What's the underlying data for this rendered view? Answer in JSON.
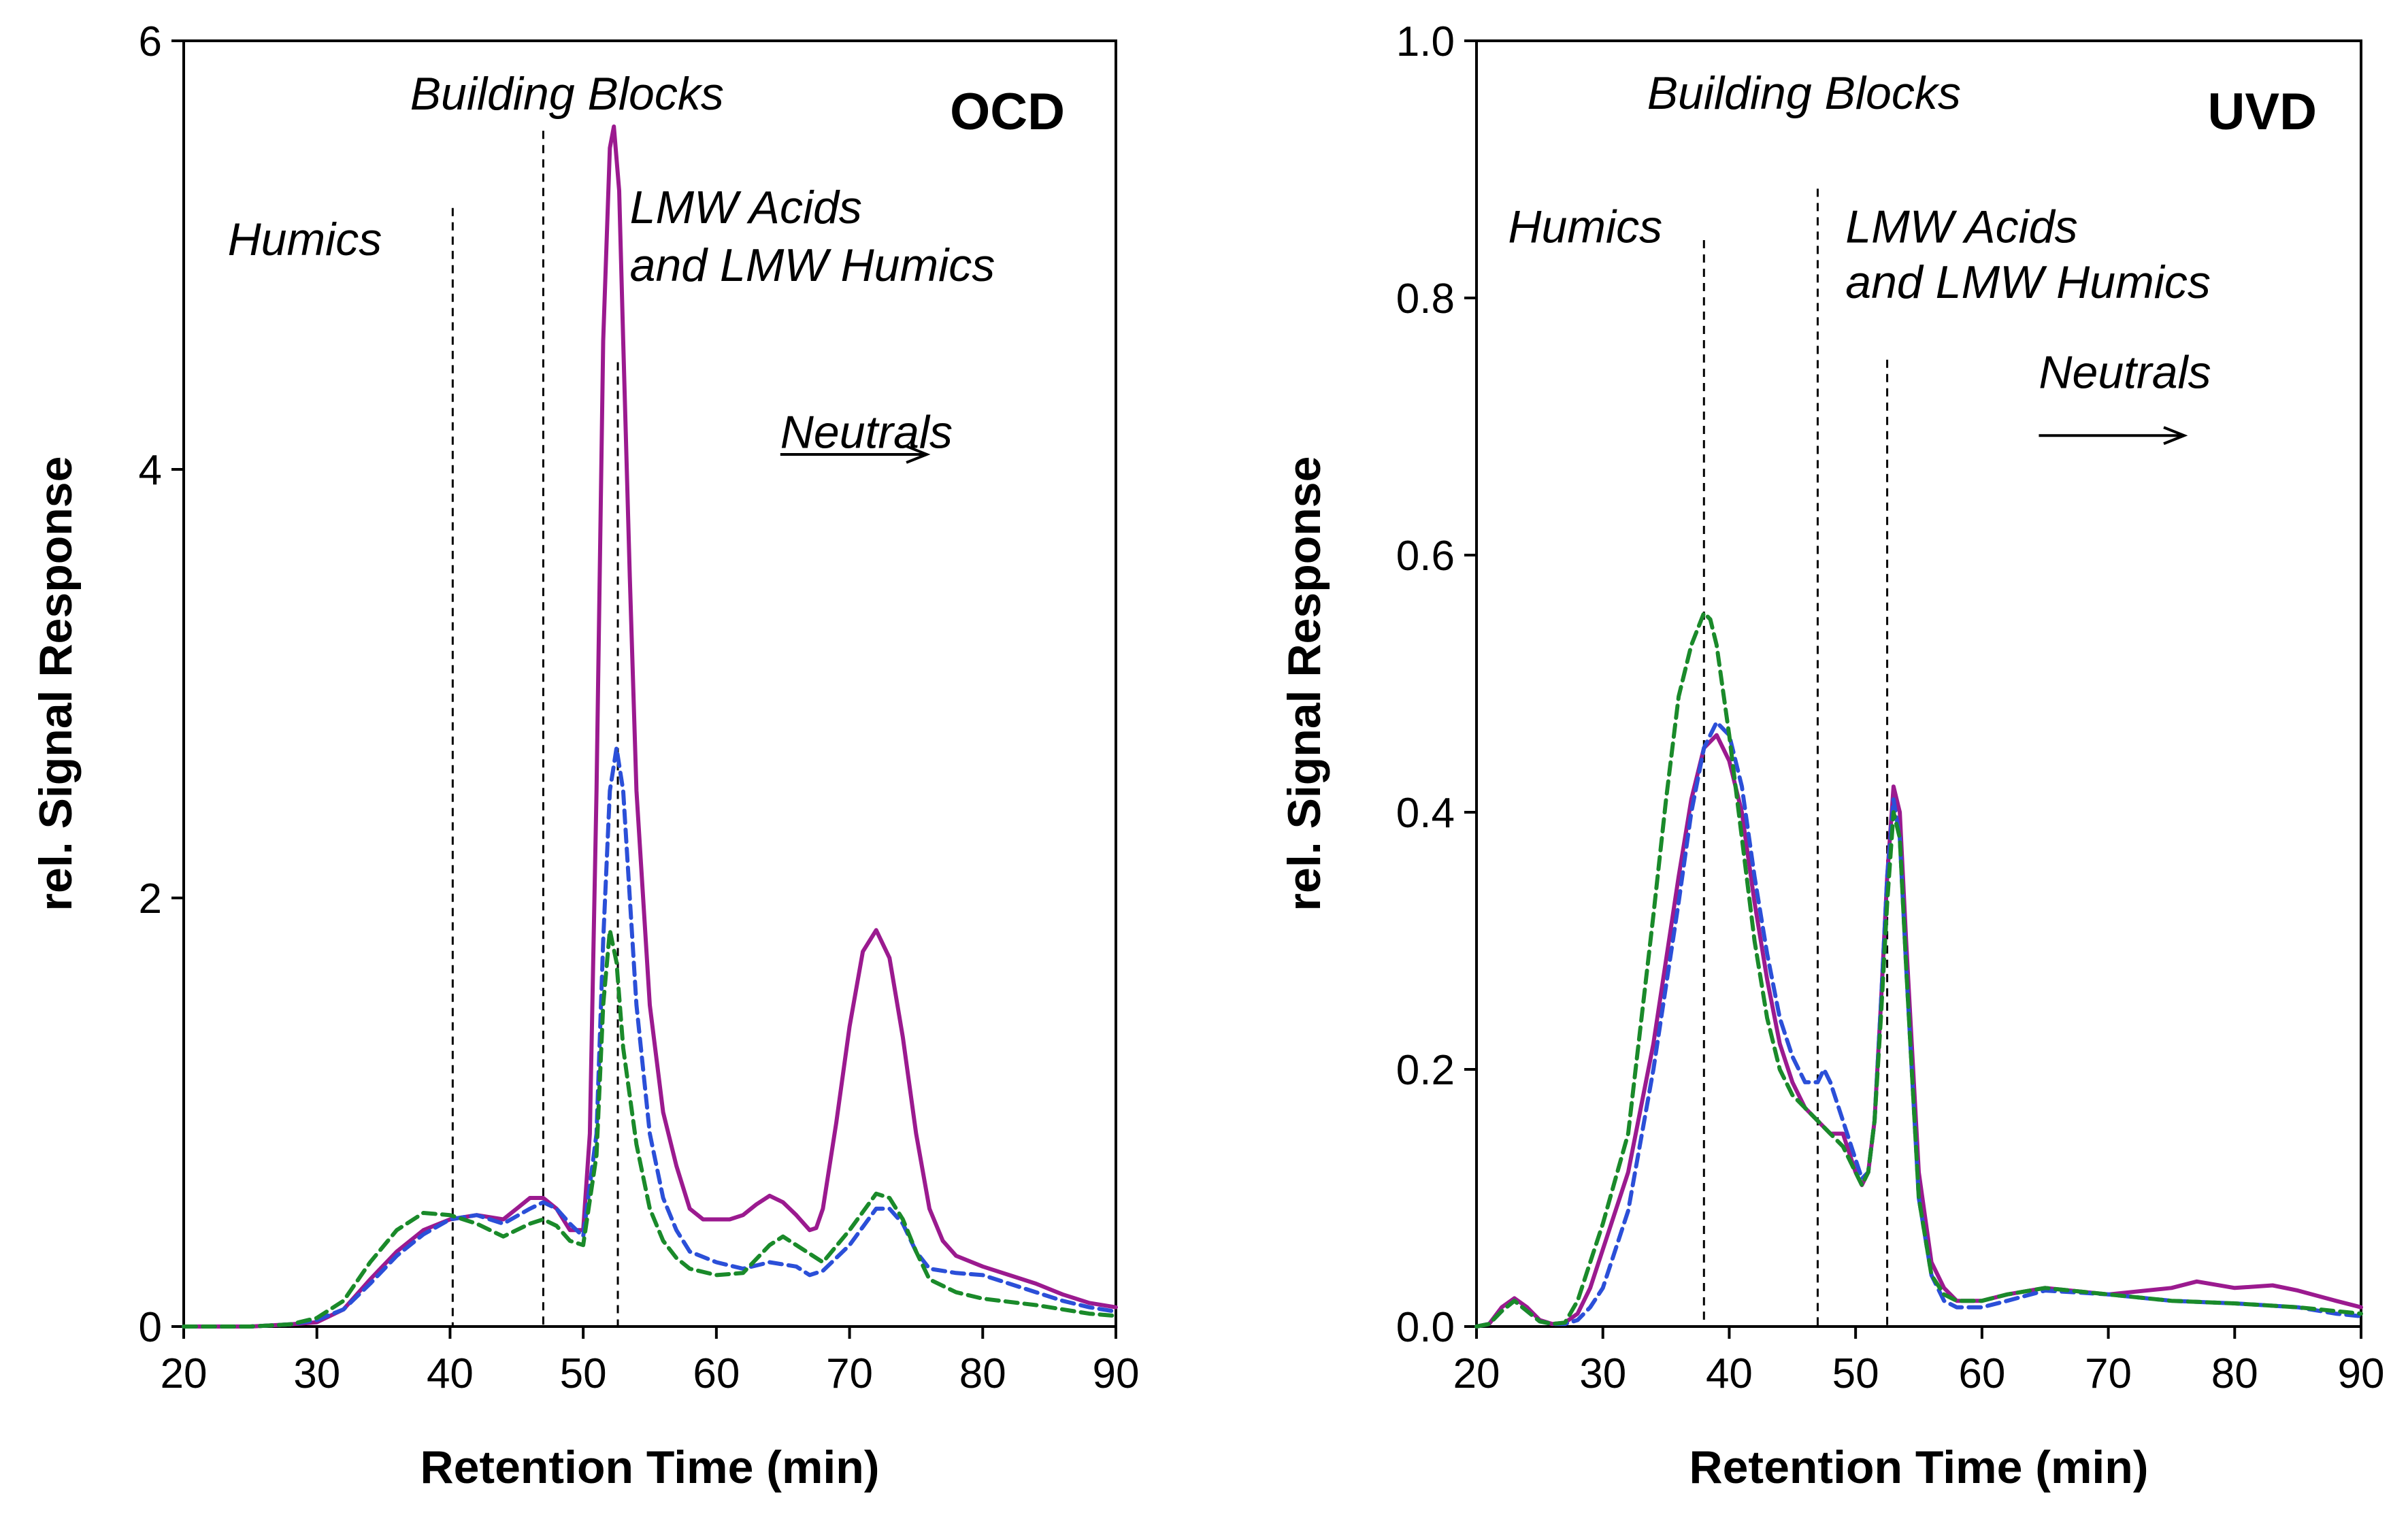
{
  "chart_data": [
    {
      "type": "line",
      "title": "OCD",
      "xlabel": "Retention Time (min)",
      "ylabel": "rel. Signal Response",
      "xlim": [
        20,
        90
      ],
      "ylim": [
        0,
        6
      ],
      "xticks": [
        20,
        30,
        40,
        50,
        60,
        70,
        80,
        90
      ],
      "xtick_labels": [
        "20",
        "30",
        "40",
        "50",
        "60",
        "70",
        "80",
        "90"
      ],
      "yticks": [
        0,
        2,
        4,
        6
      ],
      "ytick_labels": [
        "0",
        "2",
        "4",
        "6"
      ],
      "vlines": [
        40.2,
        47,
        52.6
      ],
      "regions": [
        {
          "lines": [
            "Humics"
          ],
          "x": 23.3,
          "y": 5.0
        },
        {
          "lines": [
            "Building Blocks"
          ],
          "x": 37,
          "y": 5.68
        },
        {
          "lines": [
            "LMW Acids",
            "and LMW Humics"
          ],
          "x": 53.5,
          "y": 5.15,
          "line_gap": 0.27
        },
        {
          "lines": [
            "Neutrals"
          ],
          "x": 64.8,
          "y": 4.1
        }
      ],
      "arrow": {
        "x1": 64.8,
        "x2": 75.8,
        "y": 4.07
      },
      "series": [
        {
          "name": "magenta",
          "color": "#9b1a8f",
          "dash": "solid",
          "x": [
            20,
            25,
            28,
            30,
            32,
            34,
            36,
            38,
            40,
            42,
            44,
            45,
            46,
            47,
            48,
            49,
            50,
            50.5,
            51,
            51.5,
            52,
            52.3,
            52.7,
            53,
            53.5,
            54,
            55,
            56,
            57,
            58,
            59,
            60,
            61,
            62,
            63,
            64,
            65,
            66,
            67,
            67.5,
            68,
            69,
            70,
            71,
            72,
            73,
            74,
            75,
            76,
            77,
            78,
            80,
            82,
            84,
            86,
            88,
            90
          ],
          "y": [
            0,
            0,
            0.01,
            0.02,
            0.08,
            0.22,
            0.35,
            0.45,
            0.5,
            0.52,
            0.5,
            0.55,
            0.6,
            0.6,
            0.55,
            0.45,
            0.45,
            0.9,
            2.5,
            4.6,
            5.5,
            5.6,
            5.3,
            4.6,
            3.5,
            2.5,
            1.5,
            1.0,
            0.75,
            0.55,
            0.5,
            0.5,
            0.5,
            0.52,
            0.57,
            0.61,
            0.58,
            0.52,
            0.45,
            0.46,
            0.55,
            0.95,
            1.4,
            1.75,
            1.85,
            1.72,
            1.35,
            0.9,
            0.55,
            0.4,
            0.33,
            0.28,
            0.24,
            0.2,
            0.15,
            0.11,
            0.09
          ]
        },
        {
          "name": "blue",
          "color": "#2b4fd8",
          "dash": "dashed",
          "x": [
            20,
            25,
            28,
            30,
            32,
            34,
            36,
            38,
            40,
            42,
            44,
            46,
            47,
            48,
            49,
            50,
            51,
            51.5,
            52,
            52.5,
            53,
            53.5,
            54,
            55,
            56,
            57,
            58,
            60,
            62,
            64,
            66,
            67,
            68,
            70,
            72,
            73,
            74,
            75,
            76,
            78,
            80,
            82,
            84,
            86,
            88,
            90
          ],
          "y": [
            0,
            0,
            0.01,
            0.03,
            0.08,
            0.2,
            0.33,
            0.43,
            0.5,
            0.52,
            0.48,
            0.55,
            0.58,
            0.55,
            0.48,
            0.42,
            0.9,
            1.8,
            2.5,
            2.7,
            2.5,
            2.0,
            1.5,
            0.9,
            0.6,
            0.45,
            0.35,
            0.3,
            0.27,
            0.3,
            0.28,
            0.24,
            0.26,
            0.38,
            0.55,
            0.55,
            0.48,
            0.35,
            0.27,
            0.25,
            0.24,
            0.2,
            0.16,
            0.12,
            0.09,
            0.07
          ]
        },
        {
          "name": "green",
          "color": "#1a8a2a",
          "dash": "dashed",
          "x": [
            20,
            25,
            28,
            30,
            32,
            34,
            36,
            38,
            40,
            42,
            44,
            46,
            47,
            48,
            49,
            50,
            51,
            51.5,
            52,
            52.5,
            53,
            54,
            55,
            56,
            57,
            58,
            60,
            62,
            64,
            65,
            66,
            68,
            70,
            72,
            73,
            74,
            75,
            76,
            78,
            80,
            84,
            88,
            90
          ],
          "y": [
            0,
            0,
            0.01,
            0.04,
            0.12,
            0.3,
            0.45,
            0.53,
            0.52,
            0.48,
            0.42,
            0.48,
            0.5,
            0.47,
            0.4,
            0.38,
            0.8,
            1.5,
            1.85,
            1.7,
            1.3,
            0.85,
            0.55,
            0.4,
            0.32,
            0.27,
            0.24,
            0.25,
            0.38,
            0.42,
            0.38,
            0.3,
            0.45,
            0.62,
            0.6,
            0.5,
            0.35,
            0.22,
            0.16,
            0.13,
            0.1,
            0.06,
            0.05
          ]
        }
      ]
    },
    {
      "type": "line",
      "title": "UVD",
      "xlabel": "Retention Time (min)",
      "ylabel": "rel. Signal Response",
      "xlim": [
        20,
        90
      ],
      "ylim": [
        0,
        1.0
      ],
      "xticks": [
        20,
        30,
        40,
        50,
        60,
        70,
        80,
        90
      ],
      "xtick_labels": [
        "20",
        "30",
        "40",
        "50",
        "60",
        "70",
        "80",
        "90"
      ],
      "yticks": [
        0,
        0.2,
        0.4,
        0.6,
        0.8,
        1.0
      ],
      "ytick_labels": [
        "0.0",
        "0.2",
        "0.4",
        "0.6",
        "0.8",
        "1.0"
      ],
      "vlines": [
        38,
        47,
        52.5
      ],
      "regions": [
        {
          "lines": [
            "Humics"
          ],
          "x": 22.5,
          "y": 0.843
        },
        {
          "lines": [
            "Building Blocks"
          ],
          "x": 33.5,
          "y": 0.947
        },
        {
          "lines": [
            "LMW Acids",
            "and LMW Humics"
          ],
          "x": 49.2,
          "y": 0.843,
          "line_gap": 0.043
        },
        {
          "lines": [
            "Neutrals"
          ],
          "x": 64.5,
          "y": 0.73
        },
        {
          "lines": [],
          "x": 0,
          "y": 0
        }
      ],
      "arrow": {
        "x1": 64.5,
        "x2": 76,
        "y": 0.693
      },
      "series": [
        {
          "name": "magenta",
          "color": "#9b1a8f",
          "dash": "solid",
          "x": [
            20,
            21,
            22,
            23,
            24,
            25,
            26,
            27,
            28,
            29,
            30,
            32,
            34,
            36,
            37,
            38,
            39,
            40,
            41,
            42,
            43,
            44,
            45,
            46,
            47,
            48,
            49,
            50,
            50.5,
            51,
            51.5,
            52,
            52.5,
            53,
            53.5,
            54,
            55,
            56,
            57,
            58,
            60,
            62,
            65,
            70,
            75,
            77,
            80,
            83,
            85,
            88,
            90
          ],
          "y": [
            0,
            0.002,
            0.015,
            0.022,
            0.015,
            0.005,
            0.002,
            0.003,
            0.01,
            0.03,
            0.06,
            0.12,
            0.22,
            0.35,
            0.41,
            0.45,
            0.46,
            0.44,
            0.4,
            0.33,
            0.27,
            0.22,
            0.19,
            0.17,
            0.16,
            0.15,
            0.15,
            0.12,
            0.11,
            0.12,
            0.16,
            0.25,
            0.35,
            0.42,
            0.4,
            0.3,
            0.12,
            0.05,
            0.03,
            0.02,
            0.02,
            0.025,
            0.03,
            0.025,
            0.03,
            0.035,
            0.03,
            0.032,
            0.028,
            0.02,
            0.015
          ]
        },
        {
          "name": "blue",
          "color": "#2b4fd8",
          "dash": "dashed",
          "x": [
            20,
            21,
            22,
            23,
            24,
            25,
            26,
            27,
            28,
            29,
            30,
            32,
            34,
            36,
            37,
            38,
            39,
            40,
            41,
            42,
            43,
            44,
            45,
            46,
            47,
            47.5,
            48,
            49,
            50,
            50.5,
            51,
            51.5,
            52,
            52.5,
            53,
            53.5,
            54,
            55,
            56,
            57,
            58,
            60,
            62,
            65,
            70,
            75,
            80,
            85,
            88,
            90
          ],
          "y": [
            0,
            0.002,
            0.012,
            0.02,
            0.012,
            0.004,
            0.002,
            0.002,
            0.005,
            0.015,
            0.03,
            0.09,
            0.2,
            0.33,
            0.4,
            0.45,
            0.47,
            0.46,
            0.42,
            0.35,
            0.29,
            0.24,
            0.21,
            0.19,
            0.19,
            0.2,
            0.19,
            0.16,
            0.13,
            0.115,
            0.12,
            0.16,
            0.25,
            0.35,
            0.41,
            0.38,
            0.28,
            0.1,
            0.04,
            0.02,
            0.015,
            0.015,
            0.02,
            0.028,
            0.025,
            0.02,
            0.018,
            0.015,
            0.01,
            0.008
          ]
        },
        {
          "name": "green",
          "color": "#1a8a2a",
          "dash": "dashed",
          "x": [
            20,
            21,
            22,
            23,
            24,
            25,
            26,
            27,
            28,
            29,
            30,
            32,
            34,
            35,
            36,
            37,
            38,
            38.5,
            39,
            40,
            41,
            42,
            43,
            44,
            45,
            46,
            47,
            48,
            49,
            50,
            50.5,
            51,
            51.5,
            52,
            52.5,
            53,
            53.5,
            54,
            55,
            56,
            57,
            58,
            60,
            62,
            65,
            70,
            75,
            80,
            85,
            88,
            90
          ],
          "y": [
            0,
            0.002,
            0.012,
            0.02,
            0.012,
            0.004,
            0.002,
            0.003,
            0.02,
            0.05,
            0.08,
            0.15,
            0.32,
            0.41,
            0.49,
            0.53,
            0.555,
            0.55,
            0.53,
            0.46,
            0.38,
            0.3,
            0.24,
            0.2,
            0.18,
            0.17,
            0.16,
            0.15,
            0.14,
            0.12,
            0.11,
            0.12,
            0.16,
            0.24,
            0.33,
            0.4,
            0.38,
            0.28,
            0.1,
            0.04,
            0.025,
            0.02,
            0.02,
            0.025,
            0.03,
            0.025,
            0.02,
            0.018,
            0.015,
            0.012,
            0.01
          ]
        }
      ]
    }
  ]
}
